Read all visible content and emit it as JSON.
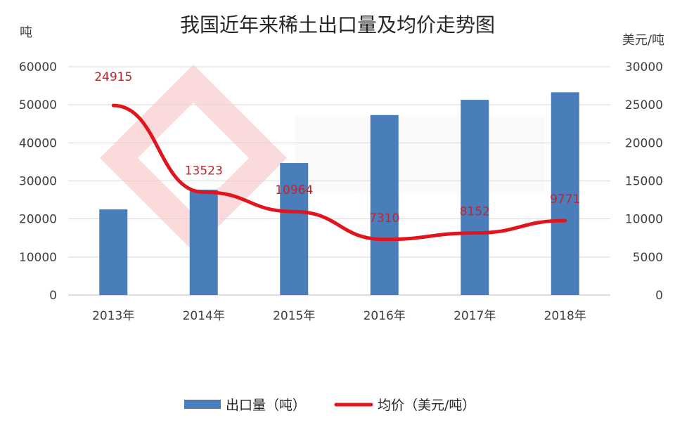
{
  "chart_data": {
    "type": "bar",
    "title": "我国近年来稀土出口量及均价走势图",
    "categories": [
      "2013年",
      "2014年",
      "2015年",
      "2016年",
      "2017年",
      "2018年"
    ],
    "y_left": {
      "unit": "吨",
      "ylim": [
        0,
        60000
      ],
      "ticks": [
        "0",
        "10000",
        "20000",
        "30000",
        "40000",
        "50000",
        "60000"
      ]
    },
    "y_right": {
      "unit": "美元/吨",
      "ylim": [
        0,
        30000
      ],
      "ticks": [
        "0",
        "5000",
        "10000",
        "15000",
        "20000",
        "25000",
        "30000"
      ]
    },
    "series": [
      {
        "name": "出口量（吨）",
        "type": "bar",
        "axis": "left",
        "color": "#4a7ebb",
        "values": [
          22500,
          27700,
          34700,
          47300,
          51300,
          53300
        ]
      },
      {
        "name": "均价（美元/吨）",
        "type": "line",
        "axis": "right",
        "color": "#e0161f",
        "values": [
          24915,
          13523,
          10964,
          7310,
          8152,
          9771
        ],
        "labels": [
          "24915",
          "13523",
          "10964",
          "7310",
          "8152",
          "9771"
        ]
      }
    ],
    "grid": true,
    "legend": "bottom"
  }
}
